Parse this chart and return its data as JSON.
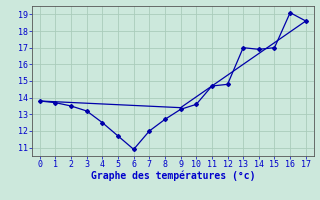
{
  "line1_x": [
    0,
    1,
    2,
    3,
    4,
    5,
    6,
    7,
    8,
    9,
    10,
    11,
    12,
    13,
    14,
    15,
    16,
    17
  ],
  "line1_y": [
    13.8,
    13.7,
    13.5,
    13.2,
    12.5,
    11.7,
    10.9,
    12.0,
    12.7,
    13.3,
    13.6,
    14.7,
    14.8,
    17.0,
    16.9,
    17.0,
    19.1,
    18.6
  ],
  "line2_x": [
    0,
    9,
    17
  ],
  "line2_y": [
    13.8,
    13.4,
    18.6
  ],
  "line_color": "#0000aa",
  "bg_color": "#cce8dc",
  "grid_color": "#aaccbb",
  "xlabel": "Graphe des températures (°c)",
  "xlabel_color": "#0000cc",
  "xlabel_fontsize": 7,
  "tick_color": "#0000cc",
  "tick_fontsize": 6,
  "xlim": [
    -0.5,
    17.5
  ],
  "ylim": [
    10.5,
    19.5
  ],
  "yticks": [
    11,
    12,
    13,
    14,
    15,
    16,
    17,
    18,
    19
  ],
  "xticks": [
    0,
    1,
    2,
    3,
    4,
    5,
    6,
    7,
    8,
    9,
    10,
    11,
    12,
    13,
    14,
    15,
    16,
    17
  ]
}
